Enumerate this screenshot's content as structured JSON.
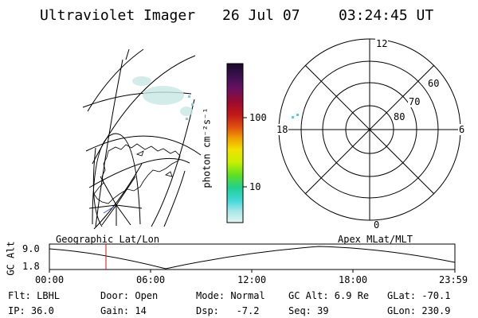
{
  "header": {
    "title": "Ultraviolet Imager",
    "date": "26 Jul 07",
    "time": "03:24:45 UT"
  },
  "colorbar": {
    "unit_label": "photon cm⁻²s⁻¹",
    "ticks": [
      "100",
      "10"
    ],
    "colors": [
      "#1a0a2a",
      "#3b1050",
      "#6a1060",
      "#9a0a30",
      "#c01818",
      "#e05010",
      "#f0a000",
      "#f4e000",
      "#c8f000",
      "#60e020",
      "#20d090",
      "#40d8d8",
      "#a8e8e8",
      "#e0f4f4"
    ]
  },
  "polar_plot": {
    "mlt_labels": [
      "12",
      "18",
      "6",
      "0"
    ],
    "lat_labels": [
      "60",
      "70",
      "80"
    ]
  },
  "timeline": {
    "left_label": "Geographic Lat/Lon",
    "right_label": "Apex MLat/MLT",
    "axis_title": "GC Alt",
    "y_max": "9.0",
    "y_min": "1.8",
    "x_ticks": [
      "00:00",
      "06:00",
      "12:00",
      "18:00",
      "23:59"
    ],
    "marker_color": "#d01010"
  },
  "footer": {
    "row1": [
      {
        "label": "Flt: LBHL"
      },
      {
        "label": "Door: Open"
      },
      {
        "label": "Mode: Normal"
      },
      {
        "label": "GC Alt: 6.9 Re"
      },
      {
        "label": "GLat: -70.1"
      }
    ],
    "row2": [
      {
        "label": "IP: 36.0"
      },
      {
        "label": "Gain: 14"
      },
      {
        "label": "Dsp:   -7.2"
      },
      {
        "label": "Seq: 39"
      },
      {
        "label": "GLon: 230.9"
      }
    ]
  }
}
